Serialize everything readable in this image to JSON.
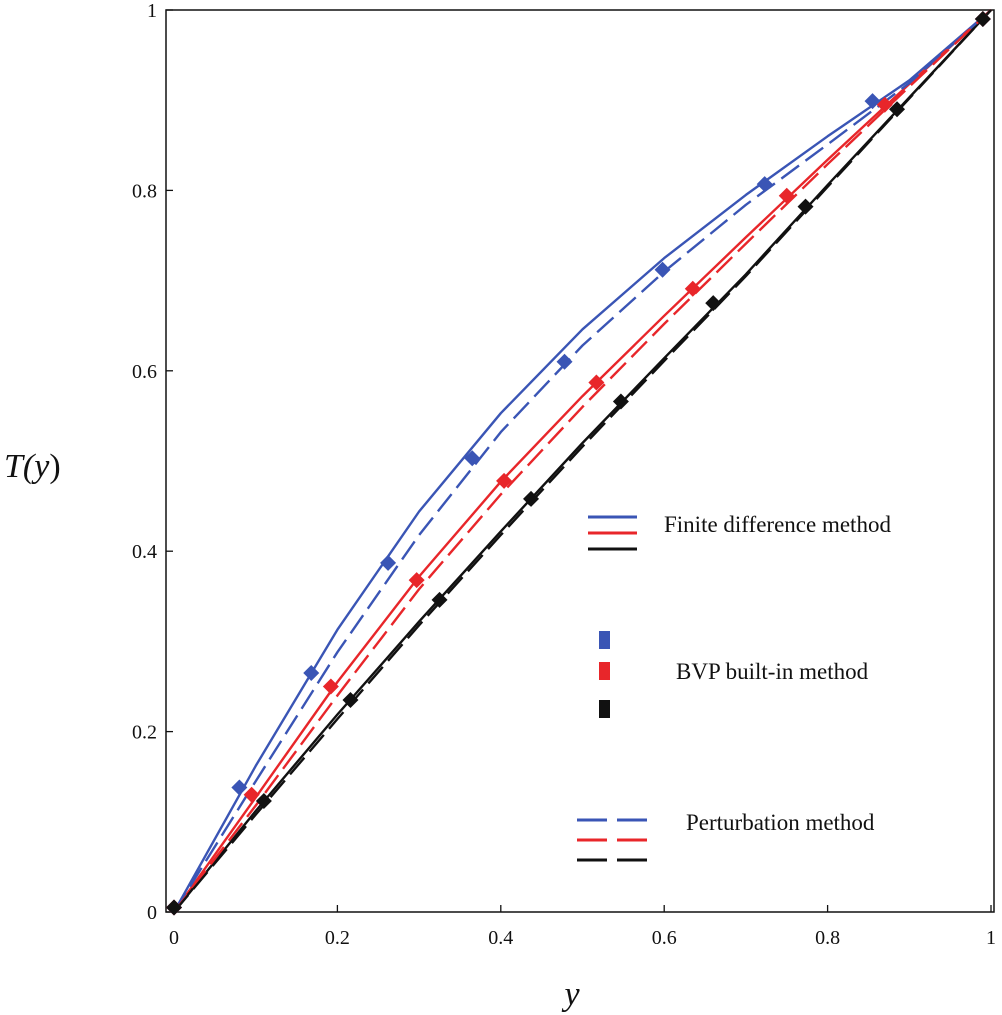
{
  "chart_data": {
    "type": "line",
    "title": "",
    "xlabel": "y",
    "ylabel_prefix": "T(",
    "ylabel_var": "y",
    "ylabel_suffix": ")",
    "xlim": [
      0,
      1
    ],
    "ylim": [
      0,
      1
    ],
    "grid": false,
    "x_ticks": [
      "0",
      "0.2",
      "0.4",
      "0.6",
      "0.8",
      "1"
    ],
    "y_ticks": [
      "0",
      "0.2",
      "0.4",
      "0.6",
      "0.8",
      "1"
    ],
    "colors": {
      "blue": "#3a55b5",
      "red": "#e8262a",
      "black": "#111111"
    },
    "series": [
      {
        "name": "Finite difference method (blue)",
        "method": "finite-difference",
        "color": "blue",
        "style": "solid",
        "points": [
          [
            0,
            0
          ],
          [
            0.1,
            0.162
          ],
          [
            0.2,
            0.313
          ],
          [
            0.3,
            0.444
          ],
          [
            0.4,
            0.553
          ],
          [
            0.5,
            0.646
          ],
          [
            0.6,
            0.725
          ],
          [
            0.7,
            0.795
          ],
          [
            0.8,
            0.86
          ],
          [
            0.9,
            0.922
          ],
          [
            1,
            1
          ]
        ]
      },
      {
        "name": "Finite difference method (red)",
        "method": "finite-difference",
        "color": "red",
        "style": "solid",
        "points": [
          [
            0,
            0
          ],
          [
            0.1,
            0.127
          ],
          [
            0.2,
            0.255
          ],
          [
            0.3,
            0.372
          ],
          [
            0.4,
            0.477
          ],
          [
            0.5,
            0.572
          ],
          [
            0.6,
            0.661
          ],
          [
            0.7,
            0.748
          ],
          [
            0.8,
            0.834
          ],
          [
            0.9,
            0.918
          ],
          [
            1,
            1
          ]
        ]
      },
      {
        "name": "Finite difference method (black)",
        "method": "finite-difference",
        "color": "black",
        "style": "solid",
        "points": [
          [
            0,
            0
          ],
          [
            0.1,
            0.112
          ],
          [
            0.2,
            0.219
          ],
          [
            0.3,
            0.322
          ],
          [
            0.4,
            0.422
          ],
          [
            0.5,
            0.52
          ],
          [
            0.6,
            0.614
          ],
          [
            0.7,
            0.707
          ],
          [
            0.8,
            0.806
          ],
          [
            0.9,
            0.903
          ],
          [
            1,
            1
          ]
        ]
      },
      {
        "name": "Perturbation method (blue)",
        "method": "perturbation",
        "color": "blue",
        "style": "dashed",
        "points": [
          [
            0,
            0
          ],
          [
            0.1,
            0.145
          ],
          [
            0.2,
            0.288
          ],
          [
            0.3,
            0.418
          ],
          [
            0.4,
            0.532
          ],
          [
            0.5,
            0.628
          ],
          [
            0.6,
            0.71
          ],
          [
            0.7,
            0.784
          ],
          [
            0.8,
            0.851
          ],
          [
            0.9,
            0.919
          ],
          [
            1,
            1
          ]
        ]
      },
      {
        "name": "Perturbation method (red)",
        "method": "perturbation",
        "color": "red",
        "style": "dashed",
        "points": [
          [
            0,
            0
          ],
          [
            0.1,
            0.118
          ],
          [
            0.2,
            0.24
          ],
          [
            0.3,
            0.358
          ],
          [
            0.4,
            0.463
          ],
          [
            0.5,
            0.56
          ],
          [
            0.6,
            0.652
          ],
          [
            0.7,
            0.741
          ],
          [
            0.8,
            0.829
          ],
          [
            0.9,
            0.915
          ],
          [
            1,
            1
          ]
        ]
      },
      {
        "name": "Perturbation method (black)",
        "method": "perturbation",
        "color": "black",
        "style": "dashed",
        "points": [
          [
            0,
            0
          ],
          [
            0.1,
            0.108
          ],
          [
            0.2,
            0.214
          ],
          [
            0.3,
            0.318
          ],
          [
            0.4,
            0.418
          ],
          [
            0.5,
            0.516
          ],
          [
            0.6,
            0.611
          ],
          [
            0.7,
            0.705
          ],
          [
            0.8,
            0.804
          ],
          [
            0.9,
            0.902
          ],
          [
            1,
            1
          ]
        ]
      },
      {
        "name": "BVP built-in method (blue)",
        "method": "bvp-built-in",
        "color": "blue",
        "style": "markers",
        "points": [
          [
            0,
            0.005
          ],
          [
            0.08,
            0.138
          ],
          [
            0.168,
            0.265
          ],
          [
            0.262,
            0.387
          ],
          [
            0.365,
            0.503
          ],
          [
            0.478,
            0.61
          ],
          [
            0.598,
            0.712
          ],
          [
            0.723,
            0.807
          ],
          [
            0.855,
            0.899
          ],
          [
            0.99,
            0.99
          ]
        ]
      },
      {
        "name": "BVP built-in method (red)",
        "method": "bvp-built-in",
        "color": "red",
        "style": "markers",
        "points": [
          [
            0,
            0.005
          ],
          [
            0.095,
            0.13
          ],
          [
            0.192,
            0.25
          ],
          [
            0.297,
            0.368
          ],
          [
            0.404,
            0.478
          ],
          [
            0.517,
            0.587
          ],
          [
            0.635,
            0.691
          ],
          [
            0.75,
            0.794
          ],
          [
            0.87,
            0.895
          ],
          [
            0.99,
            0.99
          ]
        ]
      },
      {
        "name": "BVP built-in method (black)",
        "method": "bvp-built-in",
        "color": "black",
        "style": "markers",
        "points": [
          [
            0,
            0.005
          ],
          [
            0.11,
            0.123
          ],
          [
            0.216,
            0.235
          ],
          [
            0.325,
            0.346
          ],
          [
            0.437,
            0.458
          ],
          [
            0.547,
            0.566
          ],
          [
            0.66,
            0.675
          ],
          [
            0.773,
            0.782
          ],
          [
            0.885,
            0.89
          ],
          [
            0.99,
            0.99
          ]
        ]
      }
    ],
    "legend": {
      "placement": "right",
      "entries": [
        {
          "label": "Finite difference method",
          "style": "solid"
        },
        {
          "label": "BVP built-in method",
          "style": "markers"
        },
        {
          "label": "Perturbation method",
          "style": "dashed"
        }
      ]
    }
  }
}
